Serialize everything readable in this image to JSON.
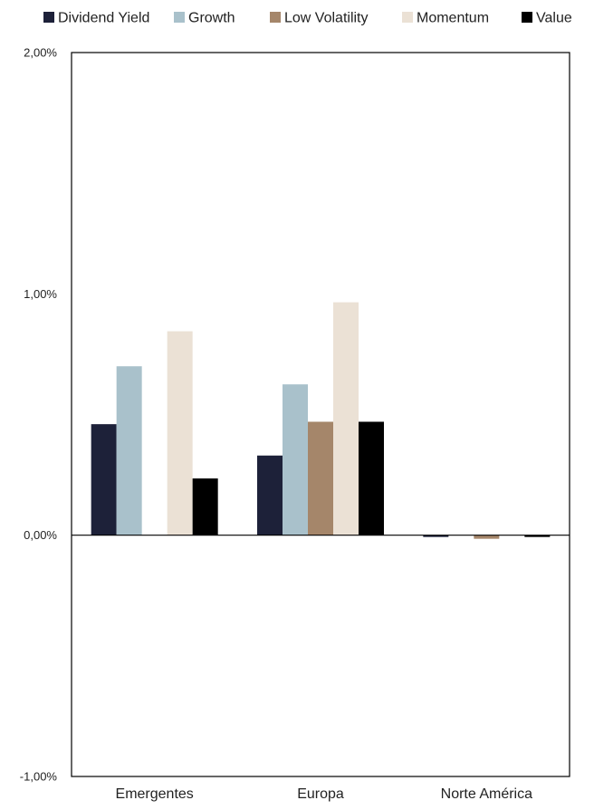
{
  "chart_data": {
    "type": "bar",
    "categories": [
      "Emergentes",
      "Europa",
      "Norte América"
    ],
    "series": [
      {
        "name": "Dividend Yield",
        "color": "#1d2139",
        "values": [
          0.46,
          0.33,
          -0.005
        ]
      },
      {
        "name": "Growth",
        "color": "#a9c1cb",
        "values": [
          0.7,
          0.625,
          0.0
        ]
      },
      {
        "name": "Low Volatility",
        "color": "#a5866a",
        "values": [
          0.0,
          0.47,
          -0.015
        ]
      },
      {
        "name": "Momentum",
        "color": "#ebe1d5",
        "values": [
          0.845,
          0.965,
          0.0
        ]
      },
      {
        "name": "Value",
        "color": "#000000",
        "values": [
          0.235,
          0.47,
          -0.005
        ]
      }
    ],
    "yticks": [
      {
        "value": 2.0,
        "label": "2,00%"
      },
      {
        "value": 1.0,
        "label": "1,00%"
      },
      {
        "value": 0.0,
        "label": "0,00%"
      },
      {
        "value": -1.0,
        "label": "-1,00%"
      }
    ],
    "ylim": [
      -1.0,
      2.0
    ],
    "legend_position": "top",
    "grid": false
  }
}
